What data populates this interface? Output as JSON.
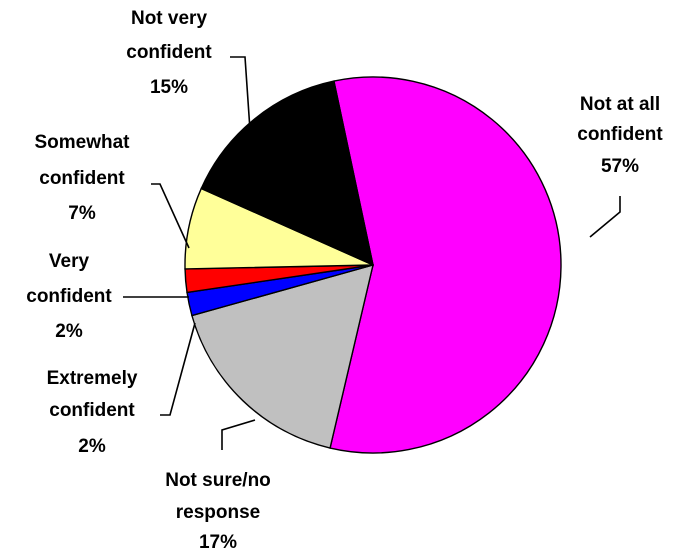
{
  "chart_data": {
    "type": "pie",
    "title": "",
    "slices": [
      {
        "label": [
          "Not at all",
          "confident"
        ],
        "value": 57,
        "display": "57%",
        "color": "#FF00FF"
      },
      {
        "label": [
          "Not sure/no",
          "response"
        ],
        "value": 17,
        "display": "17%",
        "color": "#C0C0C0"
      },
      {
        "label": [
          "Extremely",
          "confident"
        ],
        "value": 2,
        "display": "2%",
        "color": "#0000FF"
      },
      {
        "label": [
          "Very",
          "confident"
        ],
        "value": 2,
        "display": "2%",
        "color": "#FF0000"
      },
      {
        "label": [
          "Somewhat",
          "confident"
        ],
        "value": 7,
        "display": "7%",
        "color": "#FFFF99"
      },
      {
        "label": [
          "Not very",
          "confident"
        ],
        "value": 15,
        "display": "15%",
        "color": "#000000"
      }
    ]
  }
}
